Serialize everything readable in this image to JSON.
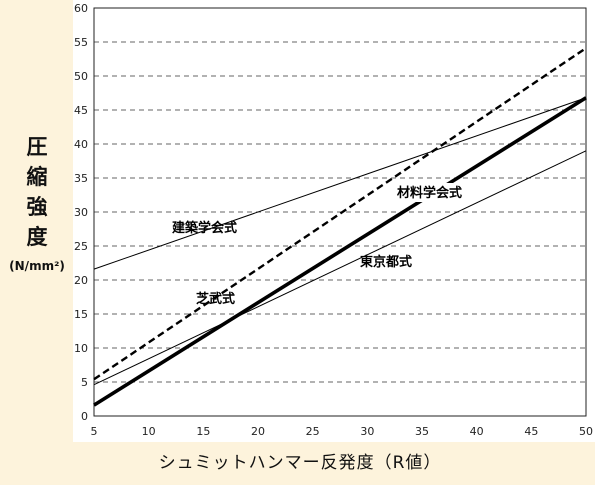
{
  "chart_data": {
    "type": "line",
    "xlabel": "シュミットハンマー反発度（R値）",
    "ylabel_chars": [
      "圧",
      "縮",
      "強",
      "度"
    ],
    "ylabel_unit": "(N/mm²)",
    "xlim": [
      5,
      50
    ],
    "ylim": [
      0,
      60
    ],
    "x_ticks": [
      5,
      10,
      15,
      20,
      25,
      30,
      35,
      40,
      45,
      50
    ],
    "y_ticks": [
      0,
      5,
      10,
      15,
      20,
      25,
      30,
      35,
      40,
      45,
      50,
      55,
      60
    ],
    "grid": "horizontal dashed",
    "series": [
      {
        "name": "建築学会式",
        "style": "thin solid",
        "x": [
          5,
          50
        ],
        "y": [
          21.6,
          46.8
        ]
      },
      {
        "name": "材料学会式",
        "style": "thick solid",
        "x": [
          5,
          50
        ],
        "y": [
          1.6,
          46.8
        ]
      },
      {
        "name": "東京都式",
        "style": "thin solid",
        "x": [
          5,
          50
        ],
        "y": [
          4.6,
          39.0
        ]
      },
      {
        "name": "芝武式",
        "style": "dashed",
        "x": [
          5,
          50
        ],
        "y": [
          5.4,
          54.1
        ]
      }
    ]
  }
}
